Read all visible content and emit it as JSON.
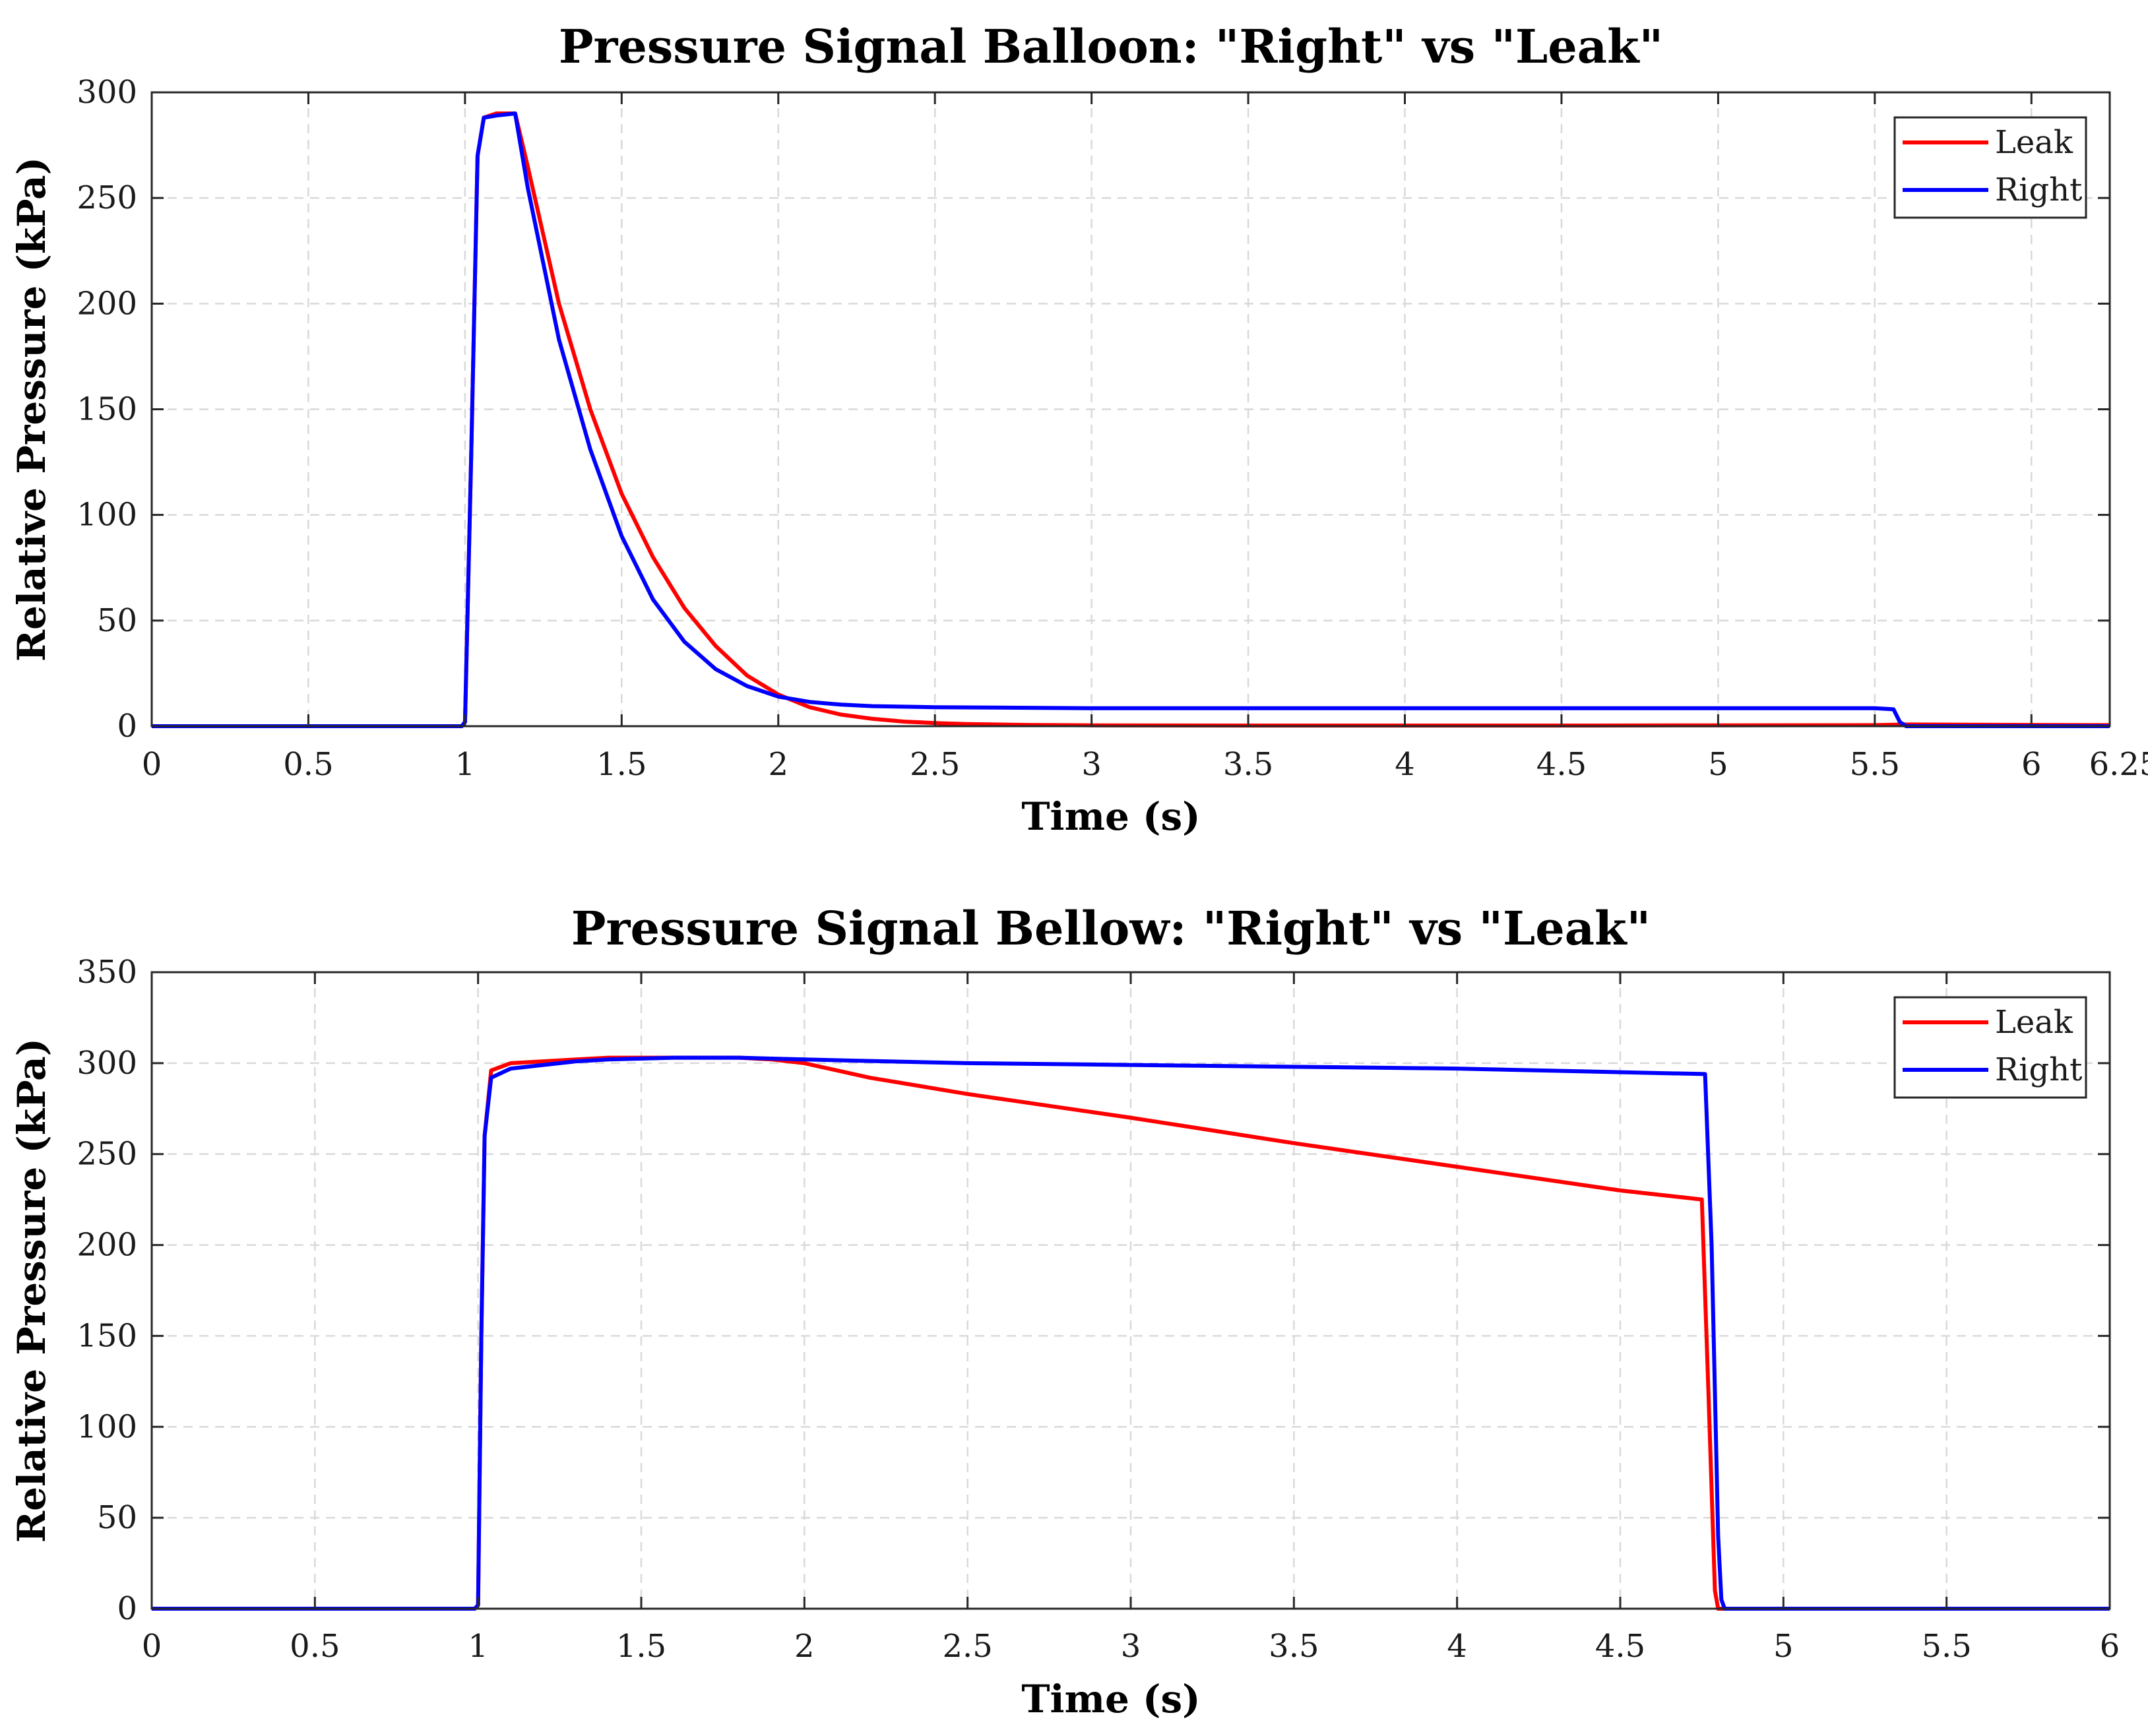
{
  "chart_data": [
    {
      "type": "line",
      "title": "Pressure Signal Balloon: \"Right\" vs \"Leak\"",
      "xlabel": "Time (s)",
      "ylabel": "Relative Pressure (kPa)",
      "xlim": [
        0,
        6.25
      ],
      "ylim": [
        0,
        300
      ],
      "xticks": [
        0,
        0.5,
        1,
        1.5,
        2,
        2.5,
        3,
        3.5,
        4,
        4.5,
        5,
        5.5,
        6,
        6.25
      ],
      "xtick_labels": [
        "0",
        "0.5",
        "1",
        "1.5",
        "2",
        "2.5",
        "3",
        "3.5",
        "4",
        "4.5",
        "5",
        "5.5",
        "6",
        "6.25"
      ],
      "yticks": [
        0,
        50,
        100,
        150,
        200,
        250,
        300
      ],
      "ytick_labels": [
        "0",
        "50",
        "100",
        "150",
        "200",
        "250",
        "300"
      ],
      "grid": true,
      "legend_position": "top-right",
      "series": [
        {
          "name": "Leak",
          "color": "#ff0000",
          "x": [
            0,
            0.99,
            1.0,
            1.02,
            1.04,
            1.06,
            1.1,
            1.16,
            1.2,
            1.3,
            1.4,
            1.5,
            1.6,
            1.7,
            1.8,
            1.9,
            2.0,
            2.1,
            2.2,
            2.3,
            2.4,
            2.5,
            2.6,
            2.8,
            3.0,
            3.5,
            4.0,
            4.5,
            5.0,
            5.5,
            5.6,
            6.0,
            6.25
          ],
          "y": [
            0,
            0,
            2,
            130,
            270,
            288,
            290,
            290,
            265,
            200,
            150,
            110,
            80,
            56,
            38,
            24,
            15,
            9,
            5.5,
            3.5,
            2.2,
            1.5,
            1,
            0.6,
            0.4,
            0.3,
            0.3,
            0.3,
            0.4,
            0.5,
            0.8,
            0.6,
            0.5
          ]
        },
        {
          "name": "Right",
          "color": "#0000ff",
          "x": [
            0,
            0.99,
            1.0,
            1.02,
            1.04,
            1.06,
            1.1,
            1.16,
            1.2,
            1.3,
            1.4,
            1.5,
            1.6,
            1.7,
            1.8,
            1.9,
            2.0,
            2.1,
            2.2,
            2.3,
            2.5,
            3.0,
            3.5,
            4.0,
            4.5,
            5.0,
            5.5,
            5.56,
            5.58,
            5.6,
            6.0,
            6.25
          ],
          "y": [
            0,
            0,
            2,
            130,
            270,
            288,
            289,
            290,
            255,
            183,
            131,
            90,
            60,
            40,
            27,
            19,
            14,
            11.5,
            10.2,
            9.5,
            9,
            8.5,
            8.5,
            8.5,
            8.5,
            8.5,
            8.5,
            8,
            2,
            0,
            0,
            0
          ]
        }
      ]
    },
    {
      "type": "line",
      "title": "Pressure Signal Bellow: \"Right\" vs \"Leak\"",
      "xlabel": "Time (s)",
      "ylabel": "Relative Pressure (kPa)",
      "xlim": [
        0,
        6
      ],
      "ylim": [
        0,
        350
      ],
      "xticks": [
        0,
        0.5,
        1,
        1.5,
        2,
        2.5,
        3,
        3.5,
        4,
        4.5,
        5,
        5.5,
        6
      ],
      "xtick_labels": [
        "0",
        "0.5",
        "1",
        "1.5",
        "2",
        "2.5",
        "3",
        "3.5",
        "4",
        "4.5",
        "5",
        "5.5",
        "6"
      ],
      "yticks": [
        0,
        50,
        100,
        150,
        200,
        250,
        300,
        350
      ],
      "ytick_labels": [
        "0",
        "50",
        "100",
        "150",
        "200",
        "250",
        "300",
        "350"
      ],
      "grid": true,
      "legend_position": "top-right",
      "series": [
        {
          "name": "Leak",
          "color": "#ff0000",
          "x": [
            0,
            0.99,
            1.0,
            1.01,
            1.02,
            1.04,
            1.1,
            1.2,
            1.3,
            1.4,
            1.6,
            1.8,
            1.9,
            2.0,
            2.2,
            2.5,
            3.0,
            3.5,
            4.0,
            4.5,
            4.75,
            4.77,
            4.79,
            4.8,
            5.0,
            6.0
          ],
          "y": [
            0,
            0,
            2,
            150,
            260,
            296,
            300,
            301,
            302,
            303,
            303,
            303,
            302,
            300,
            292,
            283,
            270,
            256,
            243,
            230,
            225,
            120,
            10,
            0,
            0,
            0
          ]
        },
        {
          "name": "Right",
          "color": "#0000ff",
          "x": [
            0,
            0.99,
            1.0,
            1.01,
            1.02,
            1.04,
            1.1,
            1.2,
            1.3,
            1.4,
            1.6,
            1.8,
            2.0,
            2.5,
            3.0,
            3.5,
            4.0,
            4.5,
            4.76,
            4.78,
            4.8,
            4.81,
            4.82,
            5.0,
            6.0
          ],
          "y": [
            0,
            0,
            2,
            150,
            260,
            292,
            297,
            299,
            301,
            302,
            303,
            303,
            302,
            300,
            299,
            298,
            297,
            295,
            294,
            200,
            40,
            5,
            0,
            0,
            0
          ]
        }
      ]
    }
  ]
}
